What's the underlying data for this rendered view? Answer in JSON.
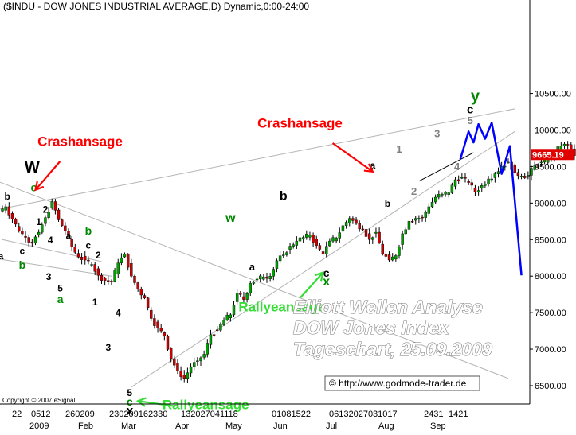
{
  "chart_data": {
    "type": "candlestick",
    "title": "($INDU - DOW JONES INDUSTRIAL AVERAGE,D) Dynamic,0:00-24:00",
    "copyright": "Copyright © 2007 eSignal.",
    "source_label": "© http://www.godmode-trader.de",
    "watermark_lines": [
      "Elliott Wellen Analyse",
      "DOW Jones Index",
      "Tageschart, 25.09.2009"
    ],
    "current_price_label": "9665.19",
    "ylim": [
      6150,
      10800
    ],
    "y_ticks": [
      10500,
      10000,
      9500,
      9000,
      8500,
      8000,
      7500,
      7000,
      6500
    ],
    "y_tick_labels": [
      "10500.00",
      "10000.00",
      "9500.00",
      "9000.00",
      "8500.00",
      "8000.00",
      "7500.00",
      "7000.00",
      "6500.00"
    ],
    "x_tick_labels": [
      "22",
      "0512",
      "260209",
      "230209162330",
      "132027041118",
      "01081522",
      "06132027031017",
      "2431",
      "1421"
    ],
    "x_month_labels": [
      "2009",
      "Feb",
      "Mar",
      "Apr",
      "May",
      "Jun",
      "Jul",
      "Aug",
      "Sep"
    ],
    "closes": [
      8950,
      8780,
      8620,
      8530,
      8450,
      8600,
      8800,
      9020,
      8770,
      8620,
      8400,
      8260,
      8220,
      8160,
      8010,
      7940,
      7930,
      8180,
      8300,
      8000,
      7820,
      7700,
      7420,
      7290,
      7180,
      6870,
      6700,
      6600,
      6760,
      6840,
      6930,
      7200,
      7260,
      7400,
      7470,
      7770,
      7680,
      7900,
      7960,
      7990,
      8000,
      8210,
      8290,
      8410,
      8480,
      8530,
      8560,
      8420,
      8300,
      8480,
      8520,
      8690,
      8790,
      8720,
      8640,
      8500,
      8600,
      8300,
      8220,
      8280,
      8580,
      8750,
      8790,
      8800,
      8950,
      9080,
      9120,
      9140,
      9320,
      9350,
      9280,
      9150,
      9240,
      9330,
      9400,
      9500,
      9560,
      9420,
      9370,
      9380,
      9510,
      9560,
      9600,
      9700,
      9780,
      9800,
      9650,
      9665
    ],
    "price_labels": [
      {
        "t": "W",
        "d": 9.0,
        "v": 9420,
        "c": "#000000",
        "s": 20
      },
      {
        "t": "c",
        "d": 9.5,
        "v": 9160,
        "c": "#008800",
        "s": 14
      },
      {
        "t": "b",
        "d": 1.5,
        "v": 9050,
        "c": "#000000",
        "s": 12
      },
      {
        "t": "2",
        "d": 13.0,
        "v": 8870,
        "c": "#000000",
        "s": 12
      },
      {
        "t": "1",
        "d": 11.0,
        "v": 8700,
        "c": "#000000",
        "s": 12
      },
      {
        "t": "c",
        "d": 6.0,
        "v": 8300,
        "c": "#000000",
        "s": 12
      },
      {
        "t": "b",
        "d": 6.0,
        "v": 8100,
        "c": "#008800",
        "s": 14
      },
      {
        "t": "a",
        "d": -0.5,
        "v": 8230,
        "c": "#000000",
        "s": 12
      },
      {
        "t": "4",
        "d": 14.5,
        "v": 8450,
        "c": "#000000",
        "s": 12
      },
      {
        "t": "a",
        "d": 20.0,
        "v": 8510,
        "c": "#000000",
        "s": 12
      },
      {
        "t": "b",
        "d": 26.0,
        "v": 8570,
        "c": "#008800",
        "s": 14
      },
      {
        "t": "c",
        "d": 26.0,
        "v": 8380,
        "c": "#000000",
        "s": 12
      },
      {
        "t": "3",
        "d": 14.0,
        "v": 7950,
        "c": "#000000",
        "s": 12
      },
      {
        "t": "5",
        "d": 17.5,
        "v": 7790,
        "c": "#000000",
        "s": 12
      },
      {
        "t": "a",
        "d": 17.5,
        "v": 7630,
        "c": "#008800",
        "s": 14
      },
      {
        "t": "2",
        "d": 29.0,
        "v": 8240,
        "c": "#000000",
        "s": 12
      },
      {
        "t": "1",
        "d": 28.0,
        "v": 7600,
        "c": "#000000",
        "s": 12
      },
      {
        "t": "4",
        "d": 35.0,
        "v": 7450,
        "c": "#000000",
        "s": 12
      },
      {
        "t": "3",
        "d": 32.0,
        "v": 6980,
        "c": "#000000",
        "s": 12
      },
      {
        "t": "5",
        "d": 38.5,
        "v": 6360,
        "c": "#000000",
        "s": 12
      },
      {
        "t": "c",
        "d": 38.5,
        "v": 6230,
        "c": "#008800",
        "s": 14
      },
      {
        "t": "x",
        "d": 38.5,
        "v": 6100,
        "c": "#000000",
        "s": 16
      },
      {
        "t": "w",
        "d": 69.0,
        "v": 8740,
        "c": "#008800",
        "s": 16
      },
      {
        "t": "a",
        "d": 75.5,
        "v": 8080,
        "c": "#000000",
        "s": 13
      },
      {
        "t": "b",
        "d": 85.0,
        "v": 9040,
        "c": "#000000",
        "s": 16
      },
      {
        "t": "c",
        "d": 98.0,
        "v": 7990,
        "c": "#000000",
        "s": 14
      },
      {
        "t": "x",
        "d": 98.0,
        "v": 7870,
        "c": "#008800",
        "s": 16
      },
      {
        "t": "a",
        "d": 112.0,
        "v": 9470,
        "c": "#000000",
        "s": 12
      },
      {
        "t": "b",
        "d": 116.5,
        "v": 8950,
        "c": "#000000",
        "s": 12
      },
      {
        "t": "1",
        "d": 120.0,
        "v": 9690,
        "c": "#808080",
        "s": 13
      },
      {
        "t": "2",
        "d": 124.5,
        "v": 9110,
        "c": "#808080",
        "s": 13
      },
      {
        "t": "3",
        "d": 131.5,
        "v": 9900,
        "c": "#808080",
        "s": 13
      },
      {
        "t": "4",
        "d": 137.5,
        "v": 9450,
        "c": "#808080",
        "s": 13
      },
      {
        "t": "5",
        "d": 141.5,
        "v": 10080,
        "c": "#808080",
        "s": 13
      },
      {
        "t": "c",
        "d": 141.5,
        "v": 10230,
        "c": "#000000",
        "s": 15
      },
      {
        "t": "y",
        "d": 143.0,
        "v": 10390,
        "c": "#008800",
        "s": 20
      }
    ],
    "callouts": [
      {
        "t": "Crashansage",
        "tx": 23.5,
        "tv": 9780,
        "c": "#ff0000",
        "s": 17,
        "ad": 10.0,
        "av": 9180
      },
      {
        "t": "Crashansage",
        "tx": 90.0,
        "tv": 10030,
        "c": "#ff0000",
        "s": 17,
        "ad": 112.0,
        "av": 9430
      },
      {
        "t": "Rallyeansage",
        "tx": 84.5,
        "tv": 7520,
        "c": "#33dd33",
        "s": 17,
        "ad": 97.0,
        "av": 8050
      },
      {
        "t": "Rallyeansage",
        "tx": 61.5,
        "tv": 6180,
        "c": "#33dd33",
        "s": 17,
        "ad": 41.0,
        "av": 6290
      }
    ],
    "trend_lines": [
      {
        "x1": -5,
        "y1": 8260,
        "x2": 33.0,
        "y2": 8000
      },
      {
        "x1": -5,
        "y1": 8880,
        "x2": 155,
        "y2": 10290
      },
      {
        "x1": -5,
        "y1": 9360,
        "x2": 153,
        "y2": 6600
      },
      {
        "x1": 39.0,
        "y1": 6480,
        "x2": 155,
        "y2": 9980
      },
      {
        "x1": 126.0,
        "y1": 9300,
        "x2": 142.5,
        "y2": 9690
      },
      {
        "x1": 0,
        "y1": 8500,
        "x2": 30.0,
        "y2": 8200
      }
    ],
    "projection": {
      "color": "#0000ff",
      "points": [
        [
          138.5,
          9600
        ],
        [
          141.0,
          9980
        ],
        [
          142.5,
          9830
        ],
        [
          144.0,
          10080
        ],
        [
          146.0,
          9880
        ],
        [
          148.0,
          10100
        ],
        [
          151.0,
          9400
        ],
        [
          153.5,
          9780
        ],
        [
          157.0,
          8010
        ]
      ]
    }
  }
}
